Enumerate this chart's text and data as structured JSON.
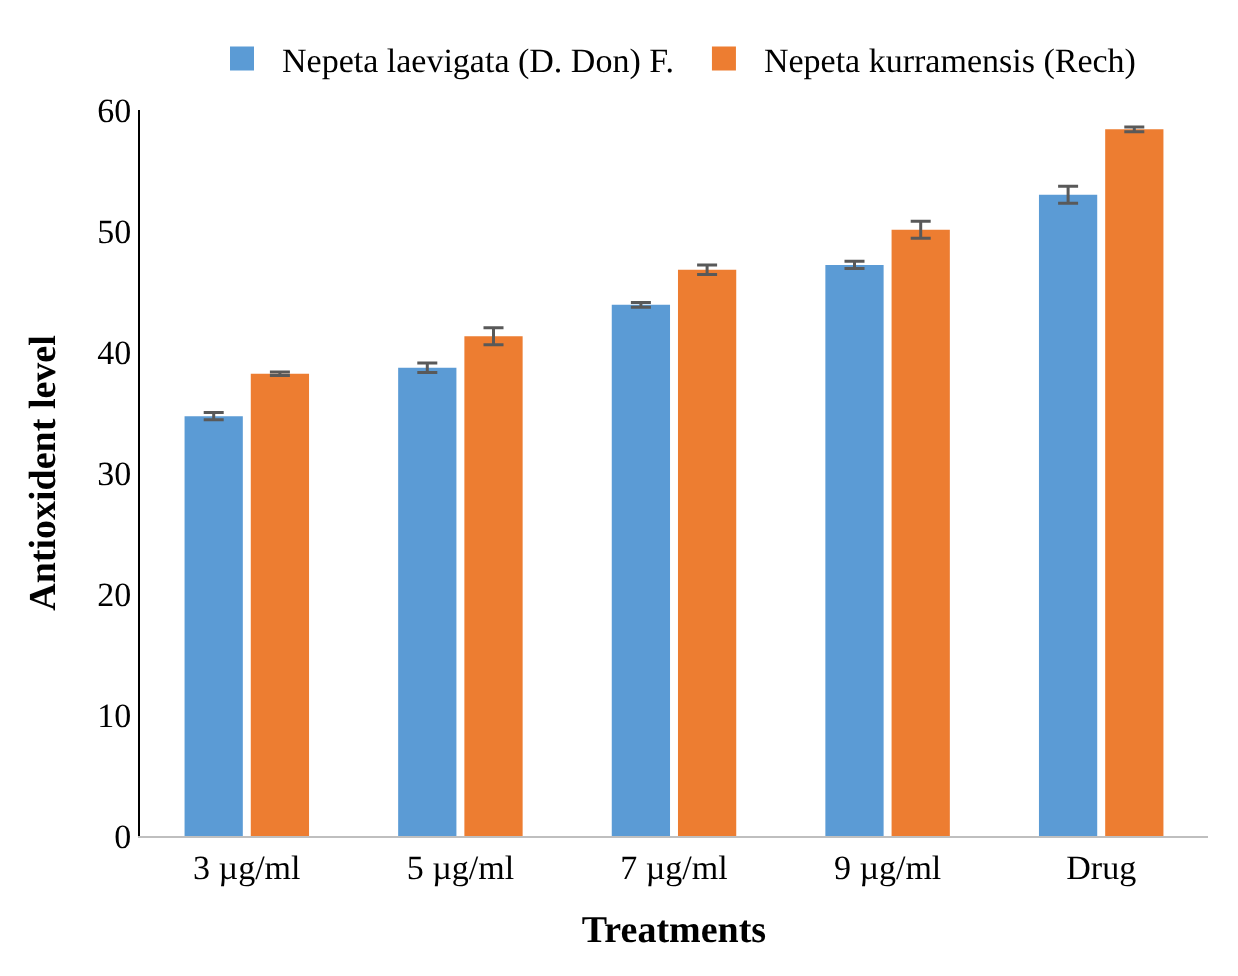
{
  "chart_data": {
    "type": "bar",
    "xlabel": "Treatments",
    "ylabel": "Antioxident level",
    "categories": [
      "3 µg/ml",
      "5 µg/ml",
      "7 µg/ml",
      "9 µg/ml",
      "Drug"
    ],
    "series": [
      {
        "name": "Nepeta laevigata (D. Don) F.",
        "color": "#5b9bd5",
        "values": [
          34.7,
          38.7,
          43.9,
          47.2,
          53.0
        ],
        "errors": [
          0.3,
          0.4,
          0.2,
          0.3,
          0.7
        ]
      },
      {
        "name": "Nepeta kurramensis (Rech)",
        "color": "#ed7d31",
        "values": [
          38.2,
          41.3,
          46.8,
          50.1,
          58.4
        ],
        "errors": [
          0.15,
          0.7,
          0.4,
          0.7,
          0.2
        ]
      }
    ],
    "ylim": [
      0,
      60
    ],
    "yticks": [
      0,
      10,
      20,
      30,
      40,
      50,
      60
    ],
    "legend": "top"
  }
}
